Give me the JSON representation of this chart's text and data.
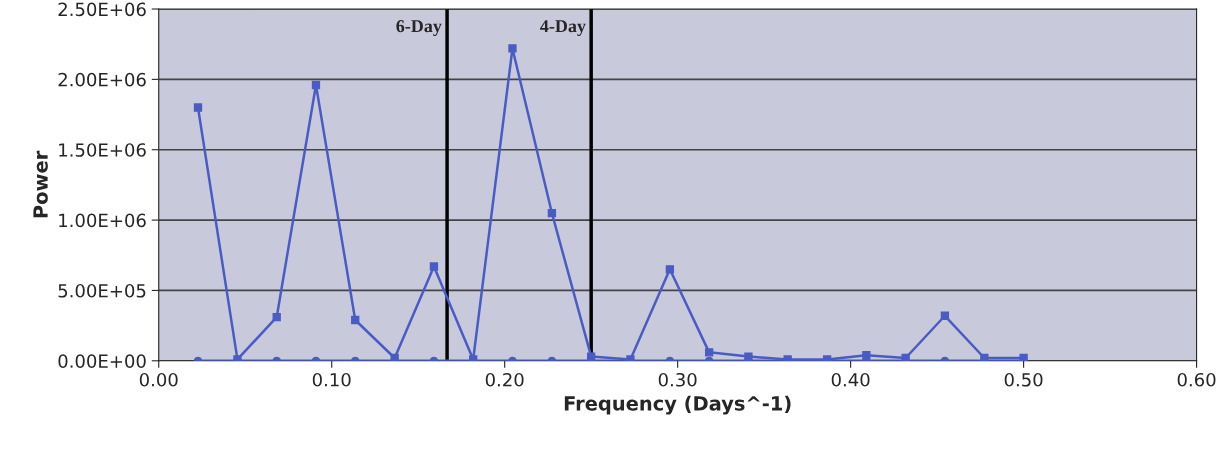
{
  "chart_data": {
    "type": "line",
    "xlabel": "Frequency (Days^-1)",
    "ylabel": "Power",
    "x": [
      0.0227,
      0.0455,
      0.0682,
      0.0909,
      0.1136,
      0.1364,
      0.1591,
      0.1818,
      0.2045,
      0.2273,
      0.25,
      0.2727,
      0.2955,
      0.3182,
      0.3409,
      0.3636,
      0.3864,
      0.4091,
      0.4318,
      0.4545,
      0.4773,
      0.5
    ],
    "series": [
      {
        "color": "#4a5cc4",
        "marker": "square",
        "values": [
          1800000,
          10000,
          310000,
          1960000,
          290000,
          20000,
          670000,
          10000,
          2220000,
          1050000,
          30000,
          10000,
          650000,
          60000,
          30000,
          10000,
          10000,
          40000,
          20000,
          320000,
          20000,
          20000
        ]
      },
      {
        "color": "#4a5cc4",
        "marker": "circle",
        "values": [
          0,
          0,
          0,
          0,
          0,
          0,
          0,
          0,
          0,
          0,
          0,
          0,
          0,
          0,
          0,
          0,
          0,
          0,
          0,
          0,
          0,
          0
        ]
      }
    ],
    "xlim": [
      0,
      0.6
    ],
    "ylim": [
      0,
      2500000
    ],
    "xticks": [
      {
        "value": 0,
        "label": "0.00"
      },
      {
        "value": 0.1,
        "label": "0.10"
      },
      {
        "value": 0.2,
        "label": "0.20"
      },
      {
        "value": 0.3,
        "label": "0.30"
      },
      {
        "value": 0.4,
        "label": "0.40"
      },
      {
        "value": 0.5,
        "label": "0.50"
      },
      {
        "value": 0.6,
        "label": "0.60"
      }
    ],
    "yticks": [
      {
        "value": 0,
        "label": "0.00E+00"
      },
      {
        "value": 500000,
        "label": "5.00E+05"
      },
      {
        "value": 1000000,
        "label": "1.00E+06"
      },
      {
        "value": 1500000,
        "label": "1.50E+06"
      },
      {
        "value": 2000000,
        "label": "2.00E+06"
      },
      {
        "value": 2500000,
        "label": "2.50E+06"
      }
    ],
    "ref_lines": [
      {
        "axis": "x",
        "value": 0.1667,
        "label": "6-Day",
        "color": "#000000"
      },
      {
        "axis": "x",
        "value": 0.25,
        "label": "4-Day",
        "color": "#000000"
      }
    ],
    "grid": "y",
    "legend": false
  }
}
